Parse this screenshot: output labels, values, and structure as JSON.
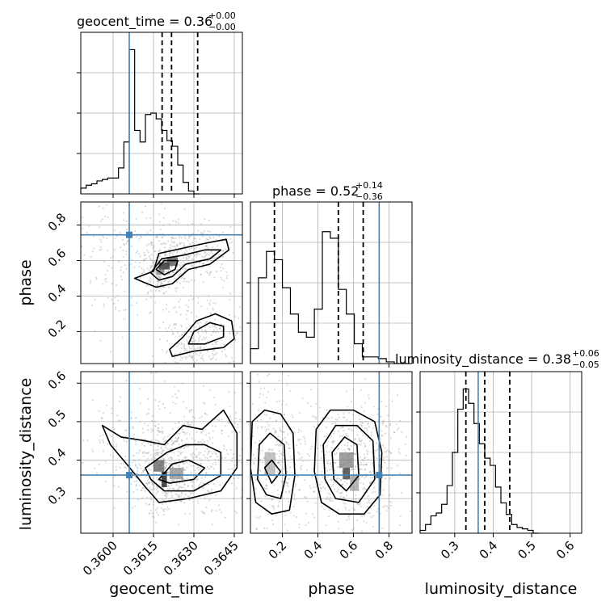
{
  "chart_data": {
    "type": "corner",
    "parameters": [
      {
        "name": "geocent_time",
        "title_prefix": "geocent_time = 0.36",
        "title_sup": "+0.00",
        "title_sub": "−0.00",
        "range": [
          0.3588,
          0.3648
        ],
        "ticks": [
          0.36,
          0.3615,
          0.363,
          0.3645
        ],
        "tick_labels": [
          "0.3600",
          "0.3615",
          "0.3630",
          "0.3645"
        ],
        "truth": 0.3606,
        "quantiles": [
          0.36182,
          0.36217,
          0.36314
        ],
        "hist": {
          "edges_start": 0.3588,
          "bin_width": 0.0002,
          "counts": [
            0.04,
            0.06,
            0.07,
            0.09,
            0.1,
            0.11,
            0.11,
            0.18,
            0.36,
            1.0,
            0.44,
            0.36,
            0.55,
            0.56,
            0.52,
            0.44,
            0.37,
            0.33,
            0.2,
            0.08,
            0.02,
            0.0
          ],
          "ymax": 1.12
        }
      },
      {
        "name": "phase",
        "title_prefix": "phase = 0.52",
        "title_sup": "+0.14",
        "title_sub": "−0.36",
        "range": [
          0.02,
          0.93
        ],
        "ticks": [
          0.2,
          0.4,
          0.6,
          0.8
        ],
        "tick_labels": [
          "0.2",
          "0.4",
          "0.6",
          "0.8"
        ],
        "truth": 0.745,
        "quantiles": [
          0.155,
          0.515,
          0.655
        ],
        "hist": {
          "edges_start": 0.02,
          "bin_width": 0.045,
          "counts": [
            0.09,
            0.52,
            0.68,
            0.63,
            0.46,
            0.3,
            0.19,
            0.16,
            0.33,
            0.8,
            0.76,
            0.45,
            0.3,
            0.12,
            0.04,
            0.04,
            0.03,
            0.01,
            0.0,
            0.0
          ],
          "ymax": 0.98
        }
      },
      {
        "name": "luminosity_distance",
        "title_prefix": "luminosity_distance = 0.38",
        "title_sup": "+0.06",
        "title_sub": "−0.05",
        "range": [
          0.21,
          0.63
        ],
        "ticks": [
          0.3,
          0.4,
          0.5,
          0.6
        ],
        "tick_labels": [
          "0.3",
          "0.4",
          "0.5",
          "0.6"
        ],
        "truth": 0.361,
        "quantiles": [
          0.329,
          0.378,
          0.443
        ],
        "hist": {
          "edges_start": 0.21,
          "bin_width": 0.014,
          "counts": [
            0.02,
            0.06,
            0.12,
            0.14,
            0.2,
            0.33,
            0.56,
            0.86,
            1.0,
            0.9,
            0.76,
            0.62,
            0.52,
            0.47,
            0.32,
            0.21,
            0.13,
            0.06,
            0.04,
            0.03,
            0.02,
            0.0
          ],
          "ymax": 1.12
        }
      }
    ],
    "truth_color": "#4682b4",
    "grid": true
  }
}
